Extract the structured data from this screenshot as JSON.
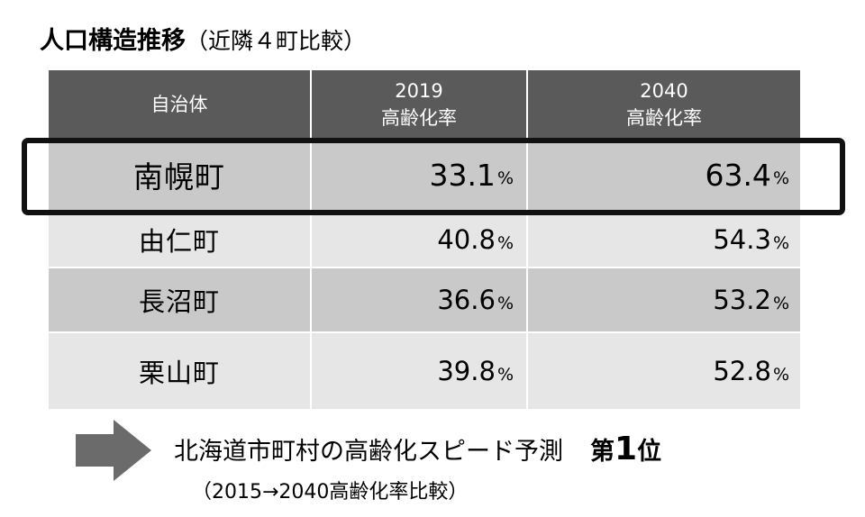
{
  "title": {
    "main": "人口構造推移",
    "sub": "（近隣４町比較）"
  },
  "table": {
    "headers": {
      "municipality": "自治体",
      "col1_year": "2019",
      "col1_label": "高齢化率",
      "col2_year": "2040",
      "col2_label": "高齢化率"
    },
    "rows": [
      {
        "name": "南幌町",
        "v2019": "33.1",
        "v2040": "63.4",
        "unit": "%"
      },
      {
        "name": "由仁町",
        "v2019": "40.8",
        "v2040": "54.3",
        "unit": "%"
      },
      {
        "name": "長沼町",
        "v2019": "36.6",
        "v2040": "53.2",
        "unit": "%"
      },
      {
        "name": "栗山町",
        "v2019": "39.8",
        "v2040": "52.8",
        "unit": "%"
      }
    ]
  },
  "footer": {
    "caption": "北海道市町村の高齢化スピード予測",
    "rank_prefix": "第",
    "rank_number": "1",
    "rank_suffix": "位",
    "note": "（2015→2040高齢化率比較）"
  },
  "colors": {
    "header_bg": "#5a5a5a",
    "row_dark": "#c9c9c9",
    "row_light": "#e6e6e6",
    "highlight_border": "#111111",
    "arrow": "#6b6b6b"
  }
}
